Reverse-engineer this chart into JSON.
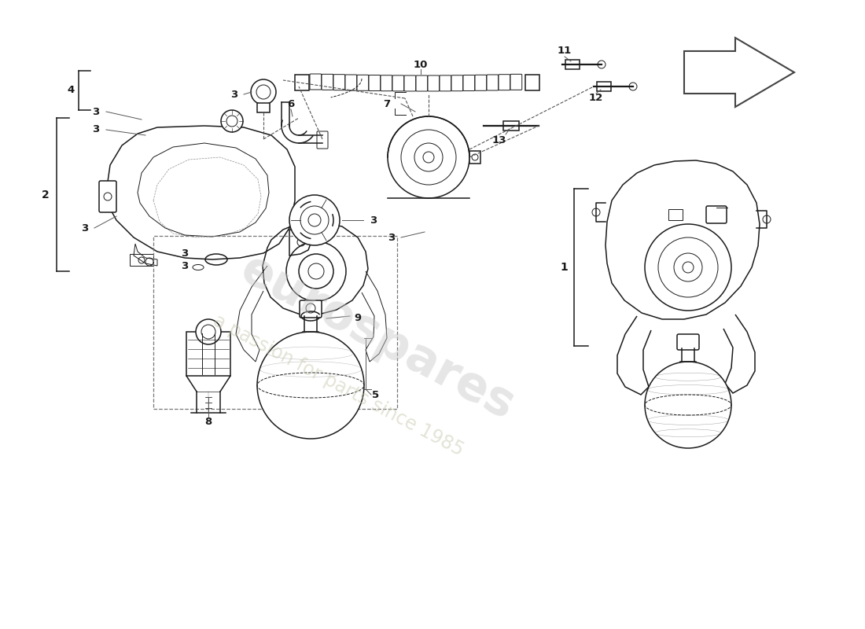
{
  "bg_color": "#ffffff",
  "lc": "#1a1a1a",
  "lc_gray": "#555555",
  "lw_thin": 0.7,
  "lw_med": 1.1,
  "lw_thick": 1.6,
  "wm1_text": "eurospares",
  "wm2_text": "a passion for parts since 1985",
  "wm1_color": "#c8c8c8",
  "wm2_color": "#c8c8b0",
  "wm1_alpha": 0.45,
  "wm2_alpha": 0.5,
  "wm1_fs": 44,
  "wm2_fs": 17,
  "wm_rot": -28
}
